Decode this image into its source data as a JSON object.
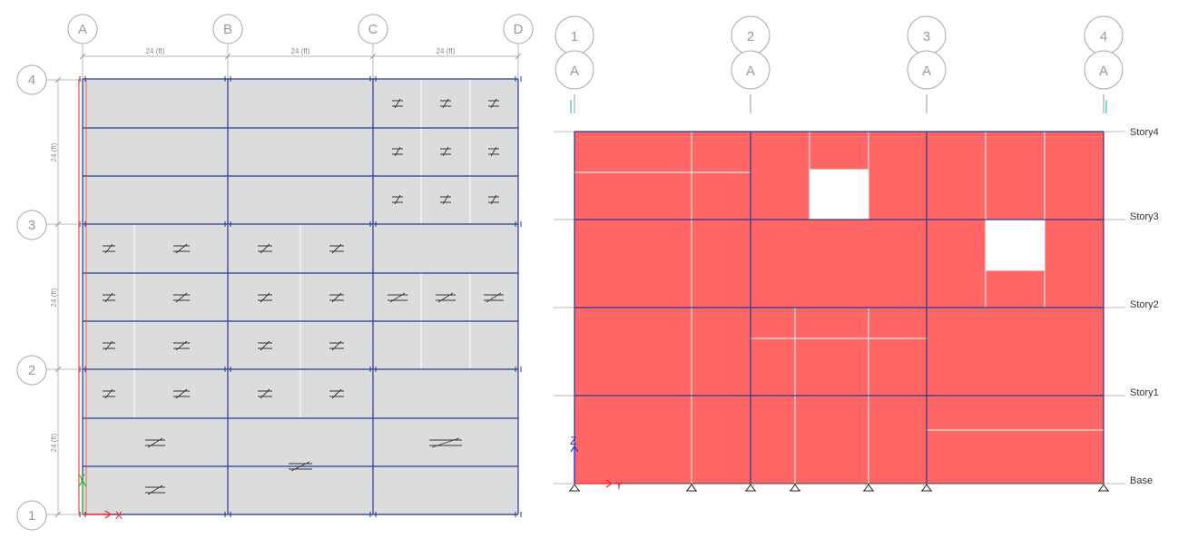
{
  "plan": {
    "columns": [
      "A",
      "B",
      "C",
      "D"
    ],
    "rows": [
      "1",
      "2",
      "3",
      "4"
    ],
    "dim_x": [
      "24 (ft)",
      "24 (ft)",
      "24 (ft)"
    ],
    "dim_y": [
      "24 (ft)",
      "24 (ft)",
      "24 (ft)"
    ],
    "axis_x": "X",
    "axis_y": "Y"
  },
  "elevation": {
    "grid_top": [
      "1",
      "2",
      "3",
      "4"
    ],
    "grid_bottom": [
      "A",
      "A",
      "A",
      "A"
    ],
    "stories": [
      "Story4",
      "Story3",
      "Story2",
      "Story1",
      "Base"
    ],
    "axis_h": "Y",
    "axis_v": "Z"
  },
  "colors": {
    "slab": "#dcdcdc",
    "beam": "#2a3a8c",
    "wall": "#ff6666",
    "bubble": "#a8a8a8",
    "axis_red": "#ff2020",
    "axis_green": "#22bb22",
    "axis_blue": "#2a2aee"
  }
}
